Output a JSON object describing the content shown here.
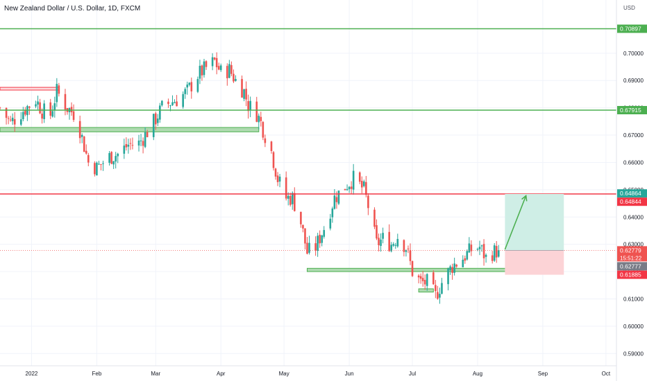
{
  "header": {
    "title": "New Zealand Dollar / U.S. Dollar, 1D, FXCM",
    "unit": "USD"
  },
  "colors": {
    "up": "#26a69a",
    "down": "#ef5350",
    "support": "#4caf50",
    "resistance": "#f23645",
    "current_price": "#ef5350",
    "grey_badge": "#787b86",
    "target_zone": "#cfeee6",
    "stop_zone": "#fcd3d6"
  },
  "chart_data": {
    "type": "candlestick",
    "y_tick_labels": [
      "0.70000",
      "0.69000",
      "0.68000",
      "0.67000",
      "0.66000",
      "0.65000",
      "0.64000",
      "0.63000",
      "0.62000",
      "0.61000",
      "0.60000",
      "0.59000"
    ],
    "y_ticks": [
      0.7,
      0.69,
      0.68,
      0.67,
      0.66,
      0.65,
      0.64,
      0.63,
      0.62,
      0.61,
      0.6,
      0.59
    ],
    "ylim": [
      0.5855,
      0.7195
    ],
    "x_tick_labels": [
      "2022",
      "Feb",
      "Mar",
      "Apr",
      "May",
      "Jun",
      "Jul",
      "Aug",
      "Sep",
      "Oct"
    ],
    "x_ticks": [
      "2022-01-01",
      "2022-02-01",
      "2022-03-01",
      "2022-04-01",
      "2022-05-01",
      "2022-06-01",
      "2022-07-01",
      "2022-08-01",
      "2022-09-01",
      "2022-10-01"
    ],
    "xlim": [
      "2021-12-17",
      "2022-10-06"
    ],
    "grid": true,
    "horizontal_lines": [
      {
        "price": 0.70897,
        "color": "#4caf50"
      },
      {
        "price": 0.67915,
        "color": "#4caf50"
      },
      {
        "price": 0.64844,
        "color": "#f23645"
      }
    ],
    "zones": [
      {
        "x0": "2021-12-17",
        "x1": "2022-01-14",
        "y0": 0.6865,
        "y1": 0.6875,
        "color": "#f23645",
        "fill": "#fdd8db"
      },
      {
        "x0": "2021-12-17",
        "x1": "2022-04-19",
        "y0": 0.6712,
        "y1": 0.6728,
        "color": "#4caf50",
        "fill": "#a5d6a7"
      },
      {
        "x0": "2022-05-12",
        "x1": "2022-08-22",
        "y0": 0.62,
        "y1": 0.6212,
        "color": "#4caf50",
        "fill": "#a5d6a7"
      },
      {
        "x0": "2022-07-04",
        "x1": "2022-07-11",
        "y0": 0.6125,
        "y1": 0.6137,
        "color": "#4caf50",
        "fill": "#a5d6a7"
      }
    ],
    "position": {
      "x0": "2022-08-14",
      "x1": "2022-09-11",
      "entry": 0.62779,
      "target": 0.64844,
      "stop": 0.61885
    },
    "arrow": {
      "from_date": "2022-08-14",
      "from_price": 0.6281,
      "to_date": "2022-08-24",
      "to_price": 0.6478
    },
    "price_labels": [
      {
        "text": "0.70897",
        "price": 0.70897,
        "bg": "#4caf50",
        "color": "#ffffff"
      },
      {
        "text": "0.67915",
        "price": 0.67915,
        "bg": "#4caf50",
        "color": "#ffffff"
      },
      {
        "text": "0.64864",
        "price": 0.64864,
        "bg": "#26a69a",
        "color": "#ffffff"
      },
      {
        "text": "0.64844",
        "price": 0.64844,
        "bg": "#f23645",
        "color": "#ffffff"
      },
      {
        "text": "0.62779",
        "price": 0.62779,
        "bg": "#ef5350",
        "color": "#ffffff"
      },
      {
        "text": "0.62777",
        "price": 0.62777,
        "bg": "#787b86",
        "color": "#ffffff"
      },
      {
        "text": "0.61885",
        "price": 0.61885,
        "bg": "#f23645",
        "color": "#ffffff"
      }
    ],
    "countdown": "15:51:22",
    "close_price": 0.62779,
    "candle_anchors": [
      [
        "2021-12-17",
        0.68
      ],
      [
        "2021-12-22",
        0.6745
      ],
      [
        "2021-12-28",
        0.679
      ],
      [
        "2022-01-03",
        0.683
      ],
      [
        "2022-01-06",
        0.679
      ],
      [
        "2022-01-10",
        0.6775
      ],
      [
        "2022-01-13",
        0.686
      ],
      [
        "2022-01-18",
        0.68
      ],
      [
        "2022-01-21",
        0.678
      ],
      [
        "2022-01-24",
        0.672
      ],
      [
        "2022-01-28",
        0.66
      ],
      [
        "2022-02-01",
        0.658
      ],
      [
        "2022-02-07",
        0.662
      ],
      [
        "2022-02-11",
        0.663
      ],
      [
        "2022-02-16",
        0.6665
      ],
      [
        "2022-02-21",
        0.667
      ],
      [
        "2022-02-24",
        0.67
      ],
      [
        "2022-03-01",
        0.676
      ],
      [
        "2022-03-04",
        0.68
      ],
      [
        "2022-03-08",
        0.682
      ],
      [
        "2022-03-11",
        0.683
      ],
      [
        "2022-03-16",
        0.686
      ],
      [
        "2022-03-21",
        0.692
      ],
      [
        "2022-03-24",
        0.694
      ],
      [
        "2022-03-29",
        0.697
      ],
      [
        "2022-04-01",
        0.693
      ],
      [
        "2022-04-05",
        0.694
      ],
      [
        "2022-04-08",
        0.69
      ],
      [
        "2022-04-12",
        0.686
      ],
      [
        "2022-04-14",
        0.681
      ],
      [
        "2022-04-18",
        0.678
      ],
      [
        "2022-04-20",
        0.6745
      ],
      [
        "2022-04-22",
        0.67
      ],
      [
        "2022-04-25",
        0.664
      ],
      [
        "2022-04-28",
        0.654
      ],
      [
        "2022-05-02",
        0.647
      ],
      [
        "2022-05-05",
        0.647
      ],
      [
        "2022-05-09",
        0.638
      ],
      [
        "2022-05-12",
        0.627
      ],
      [
        "2022-05-16",
        0.629
      ],
      [
        "2022-05-20",
        0.636
      ],
      [
        "2022-05-25",
        0.647
      ],
      [
        "2022-05-31",
        0.652
      ],
      [
        "2022-06-03",
        0.654
      ],
      [
        "2022-06-08",
        0.65
      ],
      [
        "2022-06-10",
        0.644
      ],
      [
        "2022-06-14",
        0.63
      ],
      [
        "2022-06-17",
        0.632
      ],
      [
        "2022-06-21",
        0.63
      ],
      [
        "2022-06-24",
        0.633
      ],
      [
        "2022-06-28",
        0.629
      ],
      [
        "2022-07-01",
        0.62
      ],
      [
        "2022-07-05",
        0.616
      ],
      [
        "2022-07-08",
        0.616
      ],
      [
        "2022-07-12",
        0.611
      ],
      [
        "2022-07-15",
        0.616
      ],
      [
        "2022-07-20",
        0.622
      ],
      [
        "2022-07-25",
        0.625
      ],
      [
        "2022-07-29",
        0.628
      ],
      [
        "2022-08-02",
        0.629
      ],
      [
        "2022-08-05",
        0.625
      ],
      [
        "2022-08-08",
        0.627
      ],
      [
        "2022-08-11",
        0.6278
      ]
    ]
  }
}
